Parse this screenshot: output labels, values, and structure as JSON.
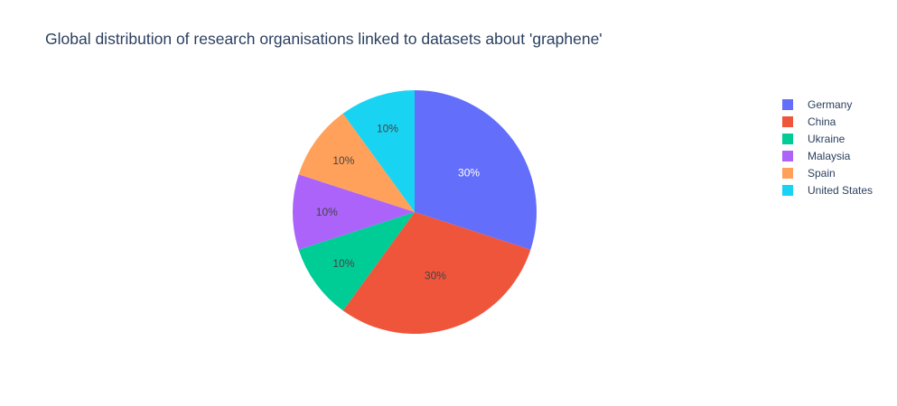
{
  "chart_data": {
    "type": "pie",
    "title": "Global distribution of research organisations linked to datasets about 'graphene'",
    "slices": [
      {
        "label": "Germany",
        "value": 30,
        "percent_label": "30%",
        "color": "#636efa",
        "text_color": "#ffffff"
      },
      {
        "label": "China",
        "value": 30,
        "percent_label": "30%",
        "color": "#ef553b",
        "text_color": "#444444"
      },
      {
        "label": "Ukraine",
        "value": 10,
        "percent_label": "10%",
        "color": "#00cc96",
        "text_color": "#444444"
      },
      {
        "label": "Malaysia",
        "value": 10,
        "percent_label": "10%",
        "color": "#ab63fa",
        "text_color": "#444444"
      },
      {
        "label": "Spain",
        "value": 10,
        "percent_label": "10%",
        "color": "#ffa15a",
        "text_color": "#444444"
      },
      {
        "label": "United States",
        "value": 10,
        "percent_label": "10%",
        "color": "#19d3f3",
        "text_color": "#444444"
      }
    ],
    "legend_entries": [
      "Germany",
      "China",
      "Ukraine",
      "Malaysia",
      "Spain",
      "United States"
    ],
    "legend_position": "top-right",
    "direction": "clockwise",
    "start_angle": "top"
  }
}
